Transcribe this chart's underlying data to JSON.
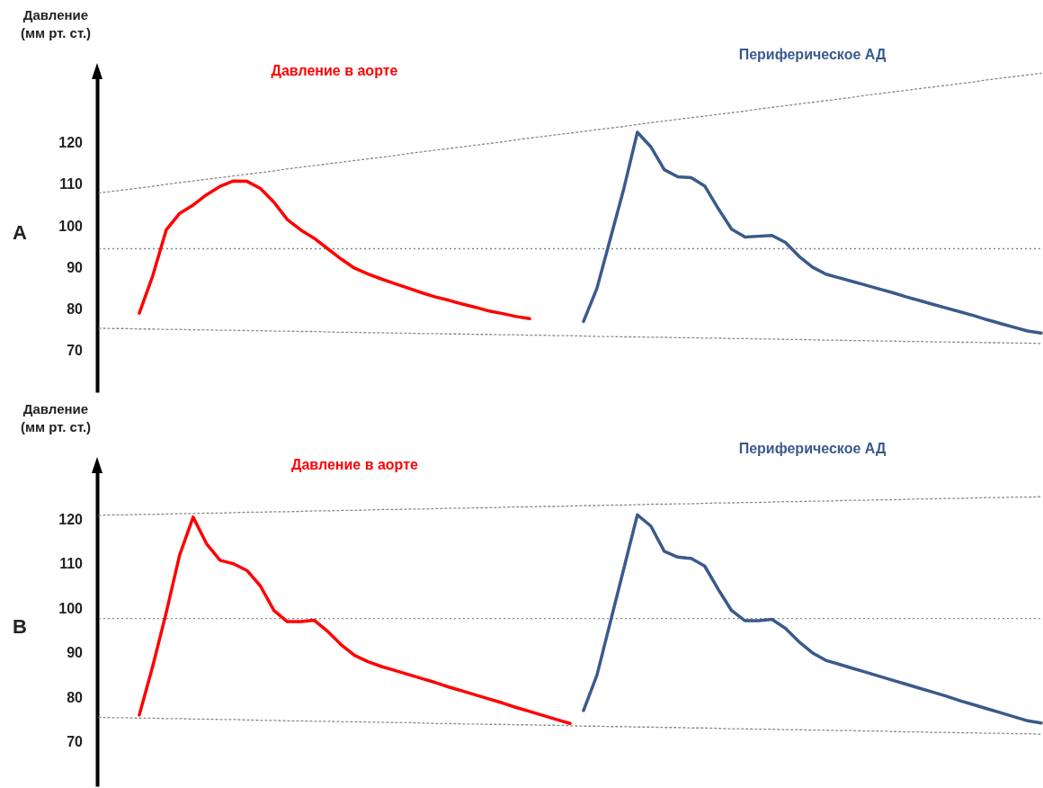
{
  "chart_data": [
    {
      "type": "line",
      "title": "A",
      "ylabel": "Давление\n(мм рт. ст.)",
      "tick_labels": "y",
      "ylim": [
        60,
        137
      ],
      "yticks": [
        70,
        80,
        90,
        100,
        110,
        120
      ],
      "categories": [
        null,
        null,
        null,
        null,
        null,
        null,
        null,
        null,
        null,
        null,
        null,
        null,
        null,
        null,
        null,
        null,
        null,
        null,
        null,
        null,
        null,
        null,
        null,
        null,
        null,
        null,
        null,
        null,
        null,
        null,
        null,
        null,
        null,
        null,
        null,
        null,
        null,
        null,
        null,
        null,
        null,
        null,
        null,
        null,
        null,
        null,
        null,
        null,
        null,
        null,
        null,
        null,
        null,
        null,
        null,
        null,
        null,
        null,
        null,
        null,
        null,
        null,
        null,
        null,
        null,
        null,
        null,
        null,
        null,
        null,
        null
      ],
      "ref_lines": [
        {
          "axis": "y",
          "value": 94.5,
          "color": "#888888",
          "line_style": "dotted"
        }
      ],
      "series": [
        {
          "name": "Давление в аорте",
          "color": "#ff0000",
          "line_style": "solid",
          "values": [
            null,
            null,
            null,
            79,
            88,
            99,
            103,
            105,
            107.5,
            109.5,
            110.8,
            110.7,
            109,
            105.7,
            101.5,
            99,
            97,
            94.5,
            92,
            89.8,
            88.4,
            87.2,
            86.1,
            85,
            83.9,
            82.9,
            82.1,
            81.2,
            80.4,
            79.5,
            78.9,
            78.2,
            77.7,
            null,
            null,
            null,
            null,
            null,
            null,
            null,
            null,
            null,
            null,
            null,
            null,
            null,
            null,
            null,
            null,
            null,
            null,
            null,
            null,
            null,
            null,
            null,
            null,
            null,
            null,
            null,
            null,
            null,
            null,
            null,
            null,
            null,
            null,
            null,
            null,
            null,
            null
          ]
        },
        {
          "name": "Периферическое АД",
          "color": "#3a5a8c",
          "line_style": "solid",
          "values": [
            null,
            null,
            null,
            null,
            null,
            null,
            null,
            null,
            null,
            null,
            null,
            null,
            null,
            null,
            null,
            null,
            null,
            null,
            null,
            null,
            null,
            null,
            null,
            null,
            null,
            null,
            null,
            null,
            null,
            null,
            null,
            null,
            null,
            null,
            null,
            null,
            77,
            85,
            97,
            109,
            122.5,
            119,
            113.5,
            111.8,
            111.6,
            109.6,
            104.2,
            99.2,
            97.3,
            97.5,
            97.7,
            96,
            92.7,
            90.1,
            88.4,
            87.5,
            86.6,
            85.7,
            84.8,
            83.9,
            82.9,
            82,
            81.1,
            80.2,
            79.3,
            78.4,
            77.4,
            76.5,
            75.6,
            74.7,
            74.2
          ]
        },
        {
          "color": "#888888",
          "line_style": "dotted",
          "values": [
            107.9,
            108.3,
            108.7,
            109.1,
            109.5,
            110.0,
            110.4,
            110.8,
            111.2,
            111.6,
            112.0,
            112.4,
            112.8,
            113.2,
            113.7,
            114.1,
            114.5,
            114.9,
            115.3,
            115.7,
            116.1,
            116.5,
            116.9,
            117.4,
            117.8,
            118.2,
            118.6,
            119.0,
            119.4,
            119.8,
            120.2,
            120.7,
            121.1,
            121.5,
            121.9,
            122.3,
            122.7,
            123.1,
            123.5,
            123.9,
            124.4,
            124.8,
            125.2,
            125.6,
            126.0,
            126.4,
            126.8,
            127.2,
            127.6,
            128.1,
            128.5,
            128.9,
            129.3,
            129.7,
            130.1,
            130.5,
            130.9,
            131.4,
            131.8,
            132.2,
            132.6,
            133.0,
            133.4,
            133.8,
            134.2,
            134.6,
            135.1,
            135.5,
            135.9,
            136.3,
            136.7
          ]
        },
        {
          "color": "#888888",
          "line_style": "dotted",
          "values": [
            75.4,
            75.3,
            75.3,
            75.2,
            75.2,
            75.1,
            75.1,
            75.0,
            75.0,
            74.9,
            74.9,
            74.8,
            74.8,
            74.7,
            74.7,
            74.6,
            74.6,
            74.5,
            74.4,
            74.4,
            74.3,
            74.3,
            74.2,
            74.2,
            74.1,
            74.1,
            74.0,
            74.0,
            73.9,
            73.9,
            73.8,
            73.8,
            73.7,
            73.7,
            73.6,
            73.6,
            73.5,
            73.4,
            73.4,
            73.3,
            73.3,
            73.2,
            73.2,
            73.1,
            73.1,
            73.0,
            73.0,
            72.9,
            72.9,
            72.8,
            72.8,
            72.7,
            72.7,
            72.6,
            72.5,
            72.5,
            72.4,
            72.4,
            72.3,
            72.3,
            72.2,
            72.2,
            72.1,
            72.1,
            72.0,
            72.0,
            71.9,
            71.9,
            71.8,
            71.8,
            71.7
          ]
        }
      ]
    },
    {
      "type": "line",
      "title": "B",
      "ylabel": "Давление\n(мм рт. ст.)",
      "tick_labels": "y",
      "ylim": [
        60,
        132
      ],
      "yticks": [
        70,
        80,
        90,
        100,
        110,
        120
      ],
      "categories": [
        null,
        null,
        null,
        null,
        null,
        null,
        null,
        null,
        null,
        null,
        null,
        null,
        null,
        null,
        null,
        null,
        null,
        null,
        null,
        null,
        null,
        null,
        null,
        null,
        null,
        null,
        null,
        null,
        null,
        null,
        null,
        null,
        null,
        null,
        null,
        null,
        null,
        null,
        null,
        null,
        null,
        null,
        null,
        null,
        null,
        null,
        null,
        null,
        null,
        null,
        null,
        null,
        null,
        null,
        null,
        null,
        null,
        null,
        null,
        null,
        null,
        null,
        null,
        null,
        null,
        null,
        null,
        null,
        null,
        null,
        null
      ],
      "ref_lines": [
        {
          "axis": "y",
          "value": 97.7,
          "color": "#888888",
          "line_style": "dotted"
        }
      ],
      "series": [
        {
          "name": "Давление в аорте",
          "color": "#ff0000",
          "line_style": "solid",
          "values": [
            null,
            null,
            null,
            76,
            87,
            99,
            112,
            120.5,
            114.5,
            110.8,
            110,
            108.5,
            105,
            99.5,
            97,
            97,
            97.3,
            94.8,
            91.8,
            89.4,
            88,
            86.9,
            86,
            85.1,
            84.2,
            83.3,
            82.3,
            81.4,
            80.5,
            79.6,
            78.7,
            77.7,
            76.8,
            75.9,
            75,
            74.1,
            null,
            null,
            null,
            null,
            null,
            null,
            null,
            null,
            null,
            null,
            null,
            null,
            null,
            null,
            null,
            null,
            null,
            null,
            null,
            null,
            null,
            null,
            null,
            null,
            null,
            null,
            null,
            null,
            null,
            null,
            null,
            null,
            null,
            null,
            null
          ]
        },
        {
          "name": "Периферическое АД",
          "color": "#3a5a8c",
          "line_style": "solid",
          "values": [
            null,
            null,
            null,
            null,
            null,
            null,
            null,
            null,
            null,
            null,
            null,
            null,
            null,
            null,
            null,
            null,
            null,
            null,
            null,
            null,
            null,
            null,
            null,
            null,
            null,
            null,
            null,
            null,
            null,
            null,
            null,
            null,
            null,
            null,
            null,
            null,
            77,
            85,
            97,
            109,
            121,
            118.5,
            112.8,
            111.5,
            111.2,
            109.5,
            104.3,
            99.5,
            97.2,
            97.2,
            97.5,
            95.5,
            92.5,
            90,
            88.3,
            87.4,
            86.5,
            85.6,
            84.7,
            83.8,
            82.9,
            82,
            81.1,
            80.2,
            79.2,
            78.3,
            77.4,
            76.5,
            75.6,
            74.7,
            74.2
          ]
        },
        {
          "color": "#888888",
          "line_style": "dotted",
          "values": [
            120.9,
            121.0,
            121.0,
            121.1,
            121.1,
            121.2,
            121.3,
            121.3,
            121.4,
            121.4,
            121.5,
            121.6,
            121.6,
            121.7,
            121.7,
            121.8,
            121.9,
            121.9,
            122.0,
            122.0,
            122.1,
            122.2,
            122.2,
            122.3,
            122.3,
            122.4,
            122.5,
            122.5,
            122.6,
            122.6,
            122.7,
            122.8,
            122.8,
            122.9,
            122.9,
            123.0,
            123.1,
            123.1,
            123.2,
            123.2,
            123.3,
            123.4,
            123.4,
            123.5,
            123.5,
            123.6,
            123.7,
            123.7,
            123.8,
            123.8,
            123.9,
            124.0,
            124.0,
            124.1,
            124.1,
            124.2,
            124.3,
            124.3,
            124.4,
            124.4,
            124.5,
            124.6,
            124.6,
            124.7,
            124.7,
            124.8,
            124.9,
            124.9,
            125.0,
            125.0,
            125.1
          ]
        },
        {
          "color": "#888888",
          "line_style": "dotted",
          "values": [
            75.5,
            75.4,
            75.4,
            75.3,
            75.3,
            75.2,
            75.2,
            75.1,
            75.1,
            75.0,
            75.0,
            74.9,
            74.8,
            74.8,
            74.7,
            74.7,
            74.6,
            74.6,
            74.5,
            74.5,
            74.4,
            74.4,
            74.3,
            74.3,
            74.2,
            74.1,
            74.1,
            74.0,
            74.0,
            73.9,
            73.9,
            73.8,
            73.8,
            73.7,
            73.7,
            73.6,
            73.5,
            73.5,
            73.4,
            73.4,
            73.3,
            73.3,
            73.2,
            73.2,
            73.1,
            73.1,
            73.0,
            72.9,
            72.9,
            72.8,
            72.8,
            72.7,
            72.7,
            72.6,
            72.6,
            72.5,
            72.5,
            72.4,
            72.4,
            72.3,
            72.2,
            72.2,
            72.1,
            72.1,
            72.0,
            72.0,
            71.9,
            71.9,
            71.8,
            71.8,
            71.7
          ]
        }
      ]
    }
  ]
}
